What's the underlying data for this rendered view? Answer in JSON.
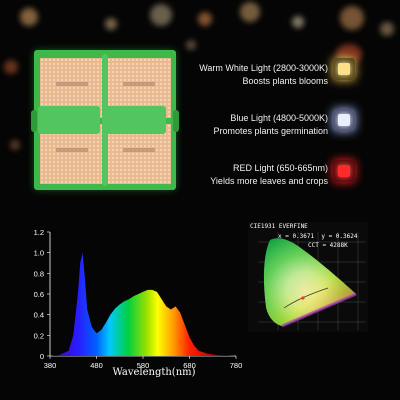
{
  "features": [
    {
      "title": "Warm White Light (2800-3000K)",
      "desc": "Boosts plants blooms",
      "color": "#ffe08a"
    },
    {
      "title": "Blue Light (4800-5000K)",
      "desc": "Promotes plants germination",
      "color": "#e8f0ff"
    },
    {
      "title": "RED Light (650-665nm)",
      "desc": "Yields more leaves and crops",
      "color": "#ff2a2a"
    }
  ],
  "chart_data": {
    "type": "area",
    "xlabel": "Wavelength(nm)",
    "ylabel": "",
    "xlim": [
      380,
      780
    ],
    "ylim": [
      0,
      1.2
    ],
    "x_ticks": [
      "380",
      "480",
      "580",
      "680",
      "780"
    ],
    "y_ticks": [
      "0",
      "0.2",
      "0.4",
      "0.6",
      "0.8",
      "1.0",
      "1.2"
    ],
    "x": [
      380,
      400,
      420,
      430,
      440,
      445,
      450,
      455,
      460,
      470,
      480,
      490,
      500,
      510,
      520,
      530,
      540,
      550,
      560,
      570,
      580,
      590,
      600,
      610,
      620,
      630,
      640,
      650,
      660,
      670,
      680,
      690,
      700,
      720,
      740,
      780
    ],
    "y": [
      0,
      0.01,
      0.05,
      0.2,
      0.6,
      0.9,
      1.0,
      0.75,
      0.45,
      0.28,
      0.22,
      0.25,
      0.32,
      0.4,
      0.46,
      0.5,
      0.53,
      0.55,
      0.58,
      0.6,
      0.62,
      0.64,
      0.64,
      0.62,
      0.55,
      0.48,
      0.45,
      0.48,
      0.42,
      0.3,
      0.18,
      0.1,
      0.05,
      0.02,
      0.01,
      0
    ]
  },
  "cie": {
    "title": "CIE1931 EVERFINE",
    "coords": "x = 0.3671  y = 0.3624",
    "cct": "CCT = 4288K"
  }
}
